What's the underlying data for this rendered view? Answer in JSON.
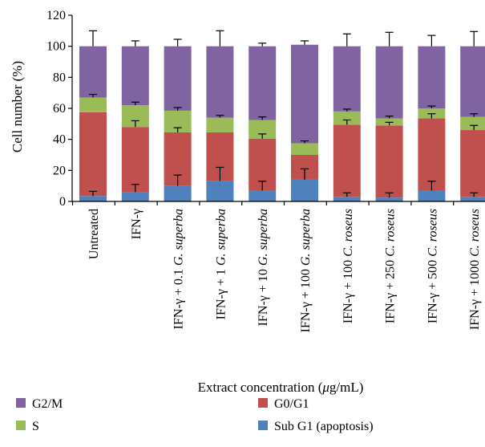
{
  "chart_data": {
    "type": "bar",
    "stacked": true,
    "title": "",
    "xlabel": "Extract concentration (μg/mL)",
    "ylabel": "Cell number (%)",
    "ylim": [
      0,
      120
    ],
    "yticks": [
      0,
      20,
      40,
      60,
      80,
      100,
      120
    ],
    "grid": false,
    "legend_position": "bottom",
    "categories": [
      {
        "pre": "Untreated",
        "ital": "",
        "post": ""
      },
      {
        "pre": "IFN-γ",
        "ital": "",
        "post": ""
      },
      {
        "pre": "IFN-γ + 0.1 ",
        "ital": "G. superba",
        "post": ""
      },
      {
        "pre": "IFN-γ + 1 ",
        "ital": "G. superba",
        "post": ""
      },
      {
        "pre": "IFN-γ + 10 ",
        "ital": "G. superba",
        "post": ""
      },
      {
        "pre": "IFN-γ + 100 ",
        "ital": "G. superba",
        "post": ""
      },
      {
        "pre": "IFN-γ + 100 ",
        "ital": "C. roseus",
        "post": ""
      },
      {
        "pre": "IFN-γ + 250 ",
        "ital": "C. roseus",
        "post": ""
      },
      {
        "pre": "IFN-γ + 500 ",
        "ital": "C. roseus",
        "post": ""
      },
      {
        "pre": "IFN-γ + 1000 ",
        "ital": "C. roseus",
        "post": ""
      }
    ],
    "series": [
      {
        "name": "Sub G1 (apoptosis)",
        "color": "#4f81bd",
        "values": [
          3.5,
          6,
          10,
          13,
          7,
          14,
          3,
          2.5,
          7,
          3
        ],
        "errors": [
          3,
          5,
          7,
          9,
          6,
          7,
          2.5,
          3,
          6,
          2.5
        ]
      },
      {
        "name": "G0/G1",
        "color": "#c0504d",
        "values": [
          54,
          42,
          34.5,
          31.5,
          33.5,
          16,
          46.5,
          46.5,
          46.5,
          43
        ],
        "errors": [
          0,
          4,
          3,
          0,
          3,
          0,
          3,
          2,
          3,
          3
        ]
      },
      {
        "name": "S",
        "color": "#9bbb59",
        "values": [
          9.5,
          14,
          14,
          9.5,
          12,
          7.5,
          8.5,
          4.5,
          6.5,
          8.5
        ],
        "errors": [
          2,
          2,
          2,
          1.5,
          2,
          1.5,
          1.5,
          1.5,
          1.5,
          2
        ]
      },
      {
        "name": "G2/M",
        "color": "#8064a2",
        "values": [
          33,
          38,
          41.5,
          46,
          47.5,
          63.5,
          42,
          46.5,
          40,
          45.5
        ],
        "errors": [
          10,
          3.5,
          4.5,
          10,
          2,
          2.5,
          8,
          9,
          7,
          9.5
        ]
      }
    ]
  },
  "legend": {
    "layout": [
      [
        "G2/M",
        "G0/G1"
      ],
      [
        "S",
        "Sub G1 (apoptosis)"
      ]
    ]
  }
}
